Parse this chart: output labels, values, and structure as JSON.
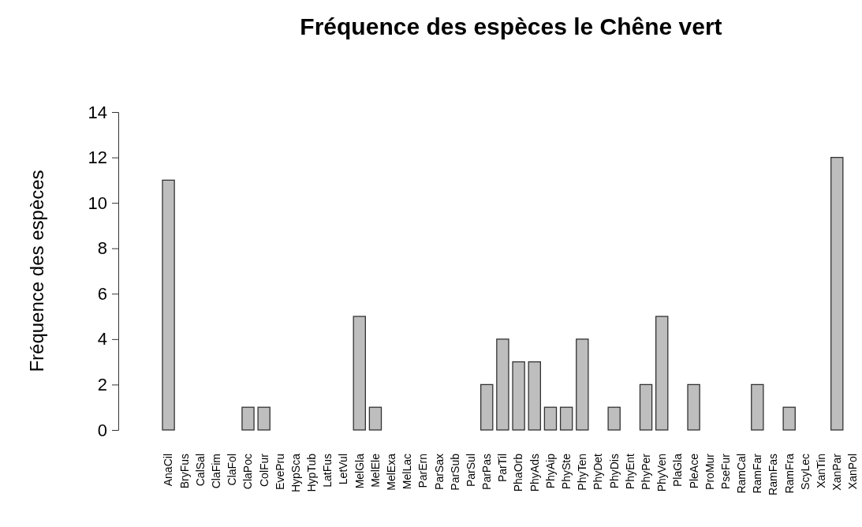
{
  "chart_data": {
    "type": "bar",
    "title": "Fréquence des espèces le Chêne vert",
    "ylabel": "Fréquence des espèces",
    "categories": [
      "AnaCil",
      "BryFus",
      "CalSal",
      "ClaFim",
      "ClaFol",
      "ClaPoc",
      "ColFur",
      "EvePru",
      "HypSca",
      "HypTub",
      "LatFus",
      "LetVul",
      "MelGla",
      "MelEle",
      "MelExa",
      "MelLac",
      "ParErn",
      "ParSax",
      "ParSub",
      "ParSul",
      "ParPas",
      "ParTil",
      "PhaOrb",
      "PhyAds",
      "PhyAip",
      "PhySte",
      "PhyTen",
      "PhyDet",
      "PhyDis",
      "PhyEnt",
      "PhyPer",
      "PhyVen",
      "PlaGla",
      "PleAce",
      "ProMur",
      "PseFur",
      "RamCal",
      "RamFar",
      "RamFas",
      "RamFra",
      "ScyLec",
      "XanTin",
      "XanPar",
      "XanPol"
    ],
    "values": [
      11,
      0,
      0,
      0,
      0,
      1,
      1,
      0,
      0,
      0,
      0,
      0,
      5,
      1,
      0,
      0,
      0,
      0,
      0,
      0,
      2,
      4,
      3,
      3,
      1,
      1,
      4,
      0,
      1,
      0,
      2,
      5,
      0,
      2,
      0,
      0,
      0,
      2,
      0,
      1,
      0,
      0,
      12,
      0
    ],
    "color": "#bebebe",
    "ylim": [
      0,
      14
    ],
    "yticks": [
      0,
      2,
      4,
      6,
      8,
      10,
      12,
      14
    ]
  }
}
